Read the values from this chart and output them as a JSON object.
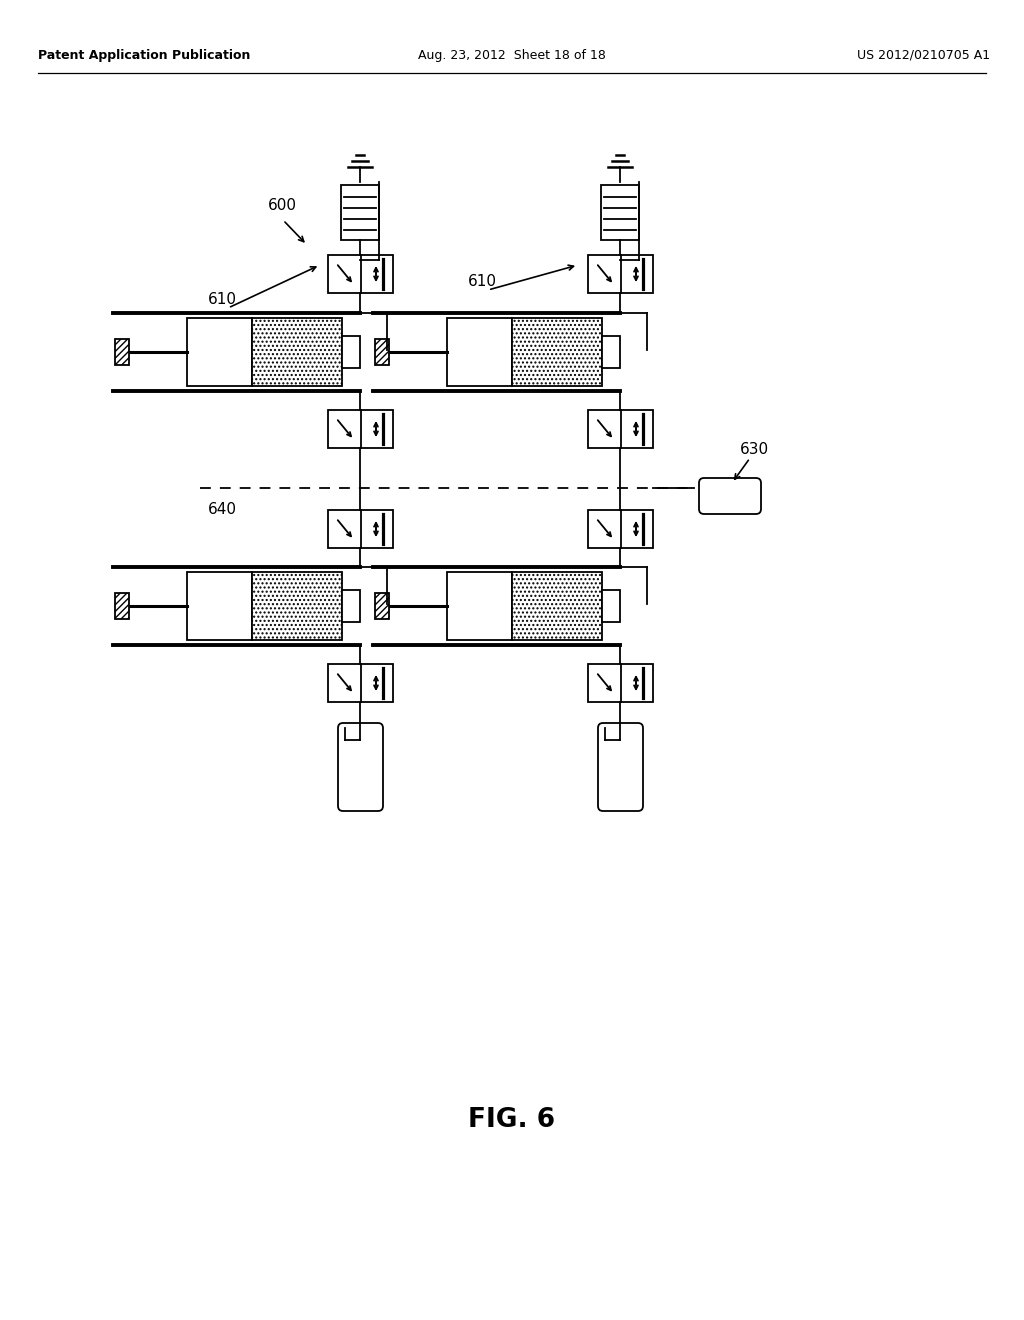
{
  "header_left": "Patent Application Publication",
  "header_center": "Aug. 23, 2012  Sheet 18 of 18",
  "header_right": "US 2012/0210705 A1",
  "bg_color": "#ffffff",
  "fig_label": "FIG. 6",
  "label_600": "600",
  "label_610a": "610",
  "label_610b": "610",
  "label_630": "630",
  "label_640": "640"
}
